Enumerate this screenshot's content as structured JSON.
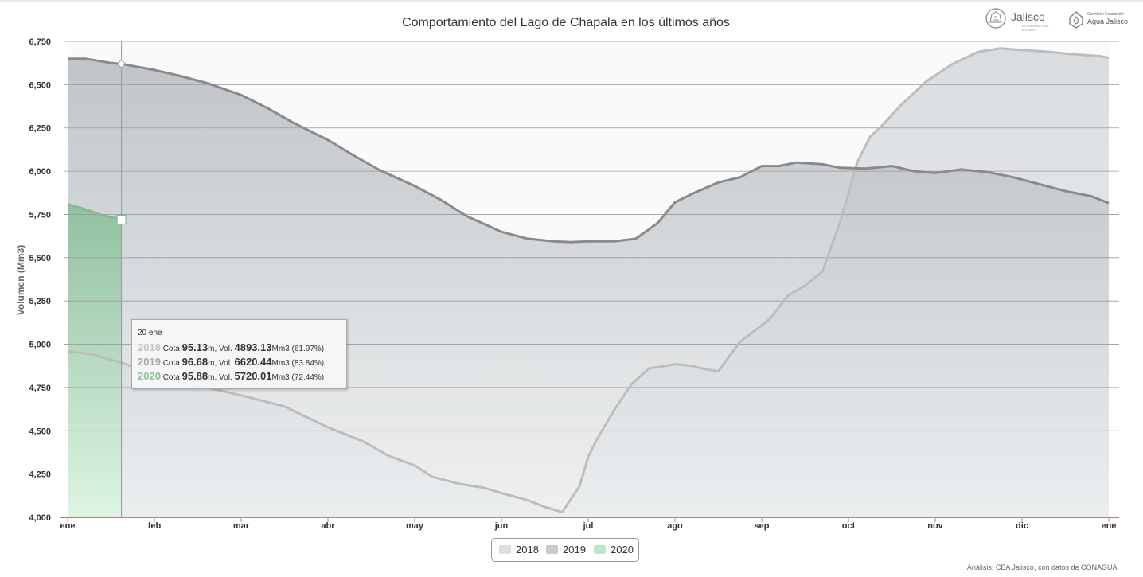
{
  "title": "Comportamiento del Lago de Chapala en los últimos años",
  "logos": {
    "jalisco_name": "Jalisco",
    "jalisco_sub": "GOBIERNO DEL ESTADO",
    "cea_line1": "Comisión Estatal del",
    "cea_line2": "Agua Jalisco"
  },
  "credit": "Análisis: CEA Jalisco, con datos de CONAGUA.",
  "legend": [
    "2018",
    "2019",
    "2020"
  ],
  "tooltip": {
    "date": "20 ene",
    "rows": [
      {
        "year": "2018",
        "cota_label": "Cota",
        "cota": "95.13",
        "cota_unit": "m, Vol.",
        "vol": "4893.13",
        "vol_unit": "Mm3",
        "pct": "(61.97%)",
        "color": "#c4c4c4"
      },
      {
        "year": "2019",
        "cota_label": "Cota",
        "cota": "96.68",
        "cota_unit": "m, Vol.",
        "vol": "6620.44",
        "vol_unit": "Mm3",
        "pct": "(83.84%)",
        "color": "#a9a9a9"
      },
      {
        "year": "2020",
        "cota_label": "Cota",
        "cota": "95.88",
        "cota_unit": "m, Vol.",
        "vol": "5720.01",
        "vol_unit": "Mm3",
        "pct": "(72.44%)",
        "color": "#8fc0a0"
      }
    ]
  },
  "colors": {
    "grid": "#9a9a9a",
    "axis": "#8b2f3b",
    "line_2018": "#bdbdbd",
    "line_2019": "#8a8a8a",
    "line_2020": "#86b898",
    "fill_2018_top": "#d9dcdf",
    "fill_2019_top": "#b3b7bb",
    "fill_2020_top": "#8fbf9d",
    "fill_2020_bottom": "#dcf5e3"
  },
  "chart_data": {
    "type": "area",
    "title": "Comportamiento del Lago de Chapala en los últimos años",
    "ylabel": "Volumen (Mm3)",
    "xlabel": "",
    "ylim": [
      4000,
      6750
    ],
    "yticks": [
      4000,
      4250,
      4500,
      4750,
      5000,
      5250,
      5500,
      5750,
      6000,
      6250,
      6500,
      6750
    ],
    "ytick_labels": [
      "4,000",
      "4,250",
      "4,500",
      "4,750",
      "5,000",
      "5,250",
      "5,500",
      "5,750",
      "6,000",
      "6,250",
      "6,500",
      "6,750"
    ],
    "x_unit": "month",
    "xlim": [
      0,
      12
    ],
    "xticks": [
      0,
      1,
      2,
      3,
      4,
      5,
      6,
      7,
      8,
      9,
      10,
      11,
      12
    ],
    "xtick_labels": [
      "ene",
      "feb",
      "mar",
      "abr",
      "may",
      "jun",
      "jul",
      "ago",
      "sep",
      "oct",
      "nov",
      "dic",
      "ene"
    ],
    "grid": true,
    "legend_position": "bottom-center",
    "crosshair_x": 0.62,
    "series": [
      {
        "name": "2018",
        "x": [
          0,
          0.3,
          0.62,
          1,
          1.3,
          1.6,
          2,
          2.5,
          3,
          3.4,
          3.7,
          4,
          4.2,
          4.5,
          4.8,
          5,
          5.3,
          5.5,
          5.6,
          5.7,
          5.9,
          6,
          6.1,
          6.3,
          6.5,
          6.7,
          6.9,
          7,
          7.2,
          7.35,
          7.5,
          7.75,
          7.95,
          8.1,
          8.3,
          8.5,
          8.7,
          8.9,
          9,
          9.1,
          9.25,
          9.4,
          9.6,
          9.9,
          10.2,
          10.5,
          10.75,
          11,
          11.3,
          11.6,
          11.9,
          12
        ],
        "values": [
          4960,
          4940,
          4893,
          4830,
          4775,
          4750,
          4705,
          4640,
          4520,
          4440,
          4355,
          4300,
          4235,
          4195,
          4170,
          4140,
          4100,
          4060,
          4045,
          4030,
          4180,
          4350,
          4450,
          4620,
          4770,
          4860,
          4875,
          4885,
          4875,
          4855,
          4845,
          5015,
          5090,
          5150,
          5280,
          5340,
          5420,
          5700,
          5870,
          6050,
          6200,
          6270,
          6380,
          6520,
          6620,
          6690,
          6710,
          6700,
          6690,
          6675,
          6665,
          6655
        ]
      },
      {
        "name": "2019",
        "x": [
          0,
          0.2,
          0.5,
          0.62,
          1,
          1.3,
          1.6,
          2,
          2.3,
          2.6,
          3,
          3.3,
          3.6,
          4,
          4.3,
          4.6,
          5,
          5.3,
          5.6,
          5.8,
          6,
          6.3,
          6.55,
          6.8,
          7,
          7.2,
          7.5,
          7.75,
          8,
          8.2,
          8.4,
          8.7,
          8.9,
          9.2,
          9.5,
          9.75,
          10,
          10.3,
          10.6,
          10.9,
          11.2,
          11.5,
          11.8,
          12
        ],
        "values": [
          6650,
          6650,
          6625,
          6620,
          6585,
          6550,
          6510,
          6440,
          6365,
          6280,
          6180,
          6090,
          6005,
          5915,
          5835,
          5740,
          5650,
          5610,
          5595,
          5590,
          5595,
          5595,
          5610,
          5700,
          5820,
          5870,
          5935,
          5965,
          6030,
          6030,
          6050,
          6040,
          6020,
          6015,
          6030,
          6000,
          5990,
          6010,
          5995,
          5965,
          5925,
          5885,
          5855,
          5815
        ]
      },
      {
        "name": "2020",
        "x": [
          0,
          0.2,
          0.4,
          0.62
        ],
        "values": [
          5810,
          5780,
          5745,
          5720
        ]
      }
    ]
  }
}
